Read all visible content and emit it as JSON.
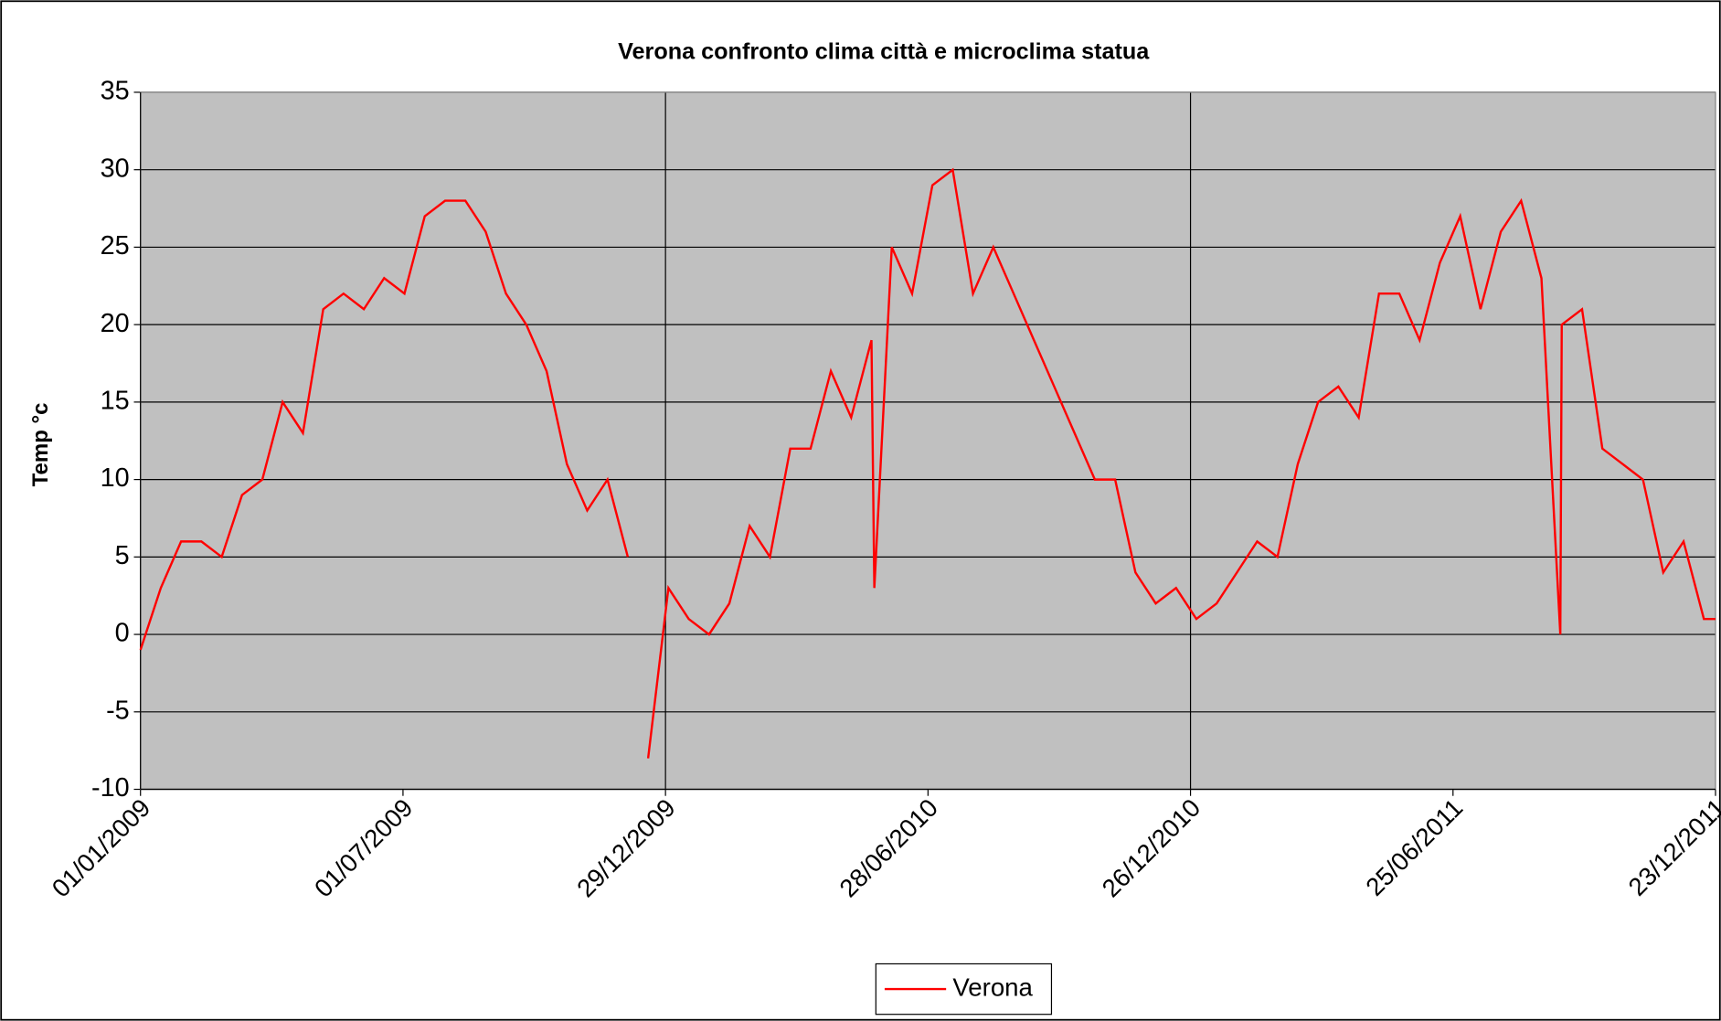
{
  "chart_data": {
    "type": "line",
    "title": "Verona confronto clima città e microclima statua",
    "y_label": "Temp °c",
    "x": [
      "01/01/2009",
      "15/01/2009",
      "29/01/2009",
      "12/02/2009",
      "26/02/2009",
      "12/03/2009",
      "26/03/2009",
      "09/04/2009",
      "23/04/2009",
      "07/05/2009",
      "21/05/2009",
      "04/06/2009",
      "18/06/2009",
      "02/07/2009",
      "16/07/2009",
      "30/07/2009",
      "13/08/2009",
      "27/08/2009",
      "10/09/2009",
      "24/09/2009",
      "08/10/2009",
      "22/10/2009",
      "05/11/2009",
      "19/11/2009",
      "03/12/2009",
      "12/12/2009",
      "17/12/2009",
      "31/12/2009",
      "14/01/2010",
      "28/01/2010",
      "11/02/2010",
      "25/02/2010",
      "11/03/2010",
      "25/03/2010",
      "08/04/2010",
      "22/04/2010",
      "06/05/2010",
      "20/05/2010",
      "22/05/2010",
      "03/06/2010",
      "17/06/2010",
      "01/07/2010",
      "15/07/2010",
      "29/07/2010",
      "12/08/2010",
      "26/08/2010",
      "09/09/2010",
      "23/09/2010",
      "07/10/2010",
      "21/10/2010",
      "04/11/2010",
      "18/11/2010",
      "02/12/2010",
      "16/12/2010",
      "30/12/2010",
      "13/01/2011",
      "27/01/2011",
      "10/02/2011",
      "24/02/2011",
      "10/03/2011",
      "24/03/2011",
      "07/04/2011",
      "21/04/2011",
      "05/05/2011",
      "19/05/2011",
      "02/06/2011",
      "16/06/2011",
      "30/06/2011",
      "14/07/2011",
      "28/07/2011",
      "11/08/2011",
      "25/08/2011",
      "07/09/2011",
      "08/09/2011",
      "22/09/2011",
      "06/10/2011",
      "20/10/2011",
      "03/11/2011",
      "17/11/2011",
      "01/12/2011",
      "15/12/2011",
      "23/12/2011"
    ],
    "series": [
      {
        "name": "Verona",
        "color": "#ff0000",
        "values": [
          -1,
          3,
          6,
          6,
          5,
          9,
          10,
          15,
          13,
          21,
          22,
          21,
          23,
          22,
          27,
          28,
          28,
          26,
          22,
          20,
          17,
          11,
          8,
          10,
          5,
          null,
          -8,
          3,
          1,
          0,
          2,
          7,
          5,
          12,
          12,
          17,
          14,
          19,
          3,
          25,
          22,
          29,
          30,
          22,
          25,
          22,
          19,
          16,
          13,
          10,
          10,
          4,
          2,
          3,
          1,
          2,
          4,
          6,
          5,
          11,
          15,
          16,
          14,
          22,
          22,
          19,
          24,
          27,
          21,
          26,
          28,
          23,
          0,
          20,
          21,
          12,
          11,
          10,
          4,
          6,
          1,
          1
        ]
      }
    ],
    "xlim": [
      "01/01/2009",
      "23/12/2011"
    ],
    "xticks": [
      "01/01/2009",
      "01/07/2009",
      "29/12/2009",
      "28/06/2010",
      "26/12/2010",
      "25/06/2011",
      "23/12/2011"
    ],
    "ylim": [
      -10,
      35
    ],
    "yticks": [
      -10,
      -5,
      0,
      5,
      10,
      15,
      20,
      25,
      30,
      35
    ],
    "grid": true,
    "legend": "bottom",
    "plot_background": "#c0c0c0"
  }
}
